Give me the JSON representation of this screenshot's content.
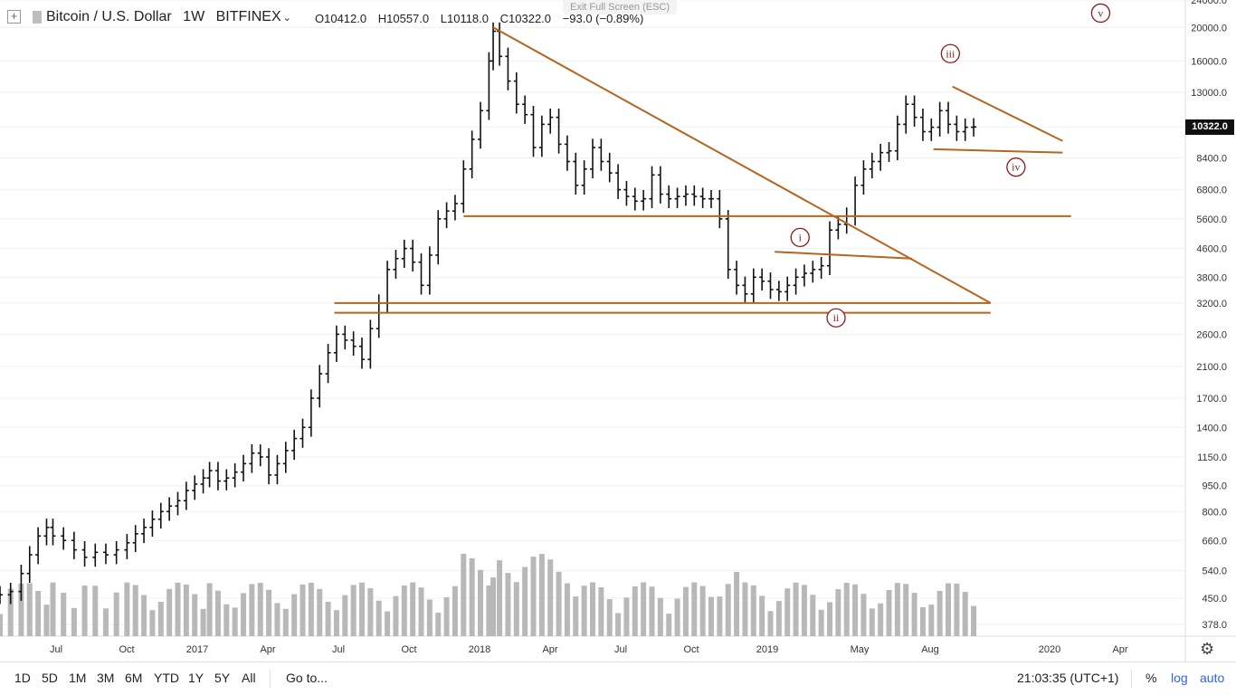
{
  "header": {
    "symbol": "Bitcoin / U.S. Dollar",
    "interval": "1W",
    "exchange": "BITFINEX",
    "open": "O10412.0",
    "high": "H10557.0",
    "low": "L10118.0",
    "close": "C10322.0",
    "change": "−93.0 (−0.89%)"
  },
  "exit_fullscreen": "Exit Full Screen (ESC)",
  "bottom_bar": {
    "ranges": [
      "1D",
      "5D",
      "1M",
      "3M",
      "6M",
      "YTD",
      "1Y",
      "5Y",
      "All"
    ],
    "goto": "Go to...",
    "clock": "21:03:35 (UTC+1)",
    "percent": "%",
    "log": "log",
    "auto": "auto"
  },
  "last_price_label": "10322.0",
  "chart_data": {
    "type": "candlestick",
    "title": "Bitcoin / U.S. Dollar",
    "scale": "log",
    "ylim": [
      360,
      24000
    ],
    "y_ticks": [
      "24000.0",
      "20000.0",
      "16000.0",
      "13000.0",
      "10322.0",
      "8400.0",
      "6800.0",
      "5600.0",
      "4600.0",
      "3800.0",
      "3200.0",
      "2600.0",
      "2100.0",
      "1700.0",
      "1400.0",
      "1150.0",
      "950.0",
      "800.0",
      "660.0",
      "540.0",
      "450.0",
      "378.0"
    ],
    "x_ticks": [
      "Jul",
      "Oct",
      "2017",
      "Apr",
      "Jul",
      "Oct",
      "2018",
      "Apr",
      "Jul",
      "Oct",
      "2019",
      "May",
      "Aug",
      "2020",
      "Apr"
    ],
    "price_series": [
      [
        0,
        460
      ],
      [
        5,
        470
      ],
      [
        10,
        530
      ],
      [
        14,
        600
      ],
      [
        18,
        680
      ],
      [
        22,
        720
      ],
      [
        25,
        680
      ],
      [
        30,
        660
      ],
      [
        35,
        620
      ],
      [
        40,
        590
      ],
      [
        45,
        610
      ],
      [
        50,
        600
      ],
      [
        55,
        620
      ],
      [
        60,
        650
      ],
      [
        64,
        690
      ],
      [
        68,
        720
      ],
      [
        72,
        760
      ],
      [
        76,
        800
      ],
      [
        80,
        830
      ],
      [
        84,
        860
      ],
      [
        88,
        920
      ],
      [
        92,
        960
      ],
      [
        96,
        1000
      ],
      [
        99,
        1050
      ],
      [
        103,
        980
      ],
      [
        107,
        1000
      ],
      [
        111,
        1040
      ],
      [
        115,
        1100
      ],
      [
        119,
        1180
      ],
      [
        123,
        1150
      ],
      [
        127,
        1020
      ],
      [
        131,
        1100
      ],
      [
        135,
        1200
      ],
      [
        139,
        1300
      ],
      [
        143,
        1400
      ],
      [
        147,
        1700
      ],
      [
        151,
        2000
      ],
      [
        155,
        2300
      ],
      [
        159,
        2600
      ],
      [
        163,
        2500
      ],
      [
        167,
        2400
      ],
      [
        171,
        2200
      ],
      [
        175,
        2700
      ],
      [
        179,
        3200
      ],
      [
        183,
        4000
      ],
      [
        187,
        4300
      ],
      [
        191,
        4600
      ],
      [
        195,
        4200
      ],
      [
        199,
        3600
      ],
      [
        203,
        4400
      ],
      [
        207,
        5600
      ],
      [
        211,
        5900
      ],
      [
        215,
        6200
      ],
      [
        219,
        7800
      ],
      [
        223,
        9500
      ],
      [
        227,
        11500
      ],
      [
        231,
        16000
      ],
      [
        233,
        19500
      ],
      [
        236,
        16500
      ],
      [
        240,
        14000
      ],
      [
        244,
        12000
      ],
      [
        248,
        11200
      ],
      [
        252,
        9000
      ],
      [
        256,
        10500
      ],
      [
        260,
        11000
      ],
      [
        264,
        9200
      ],
      [
        268,
        8200
      ],
      [
        272,
        7000
      ],
      [
        276,
        7800
      ],
      [
        280,
        9000
      ],
      [
        284,
        8200
      ],
      [
        288,
        7600
      ],
      [
        292,
        6800
      ],
      [
        296,
        6500
      ],
      [
        300,
        6300
      ],
      [
        304,
        6400
      ],
      [
        308,
        7500
      ],
      [
        312,
        6600
      ],
      [
        316,
        6400
      ],
      [
        320,
        6500
      ],
      [
        324,
        6600
      ],
      [
        328,
        6500
      ],
      [
        332,
        6400
      ],
      [
        336,
        6400
      ],
      [
        340,
        5600
      ],
      [
        344,
        4000
      ],
      [
        348,
        3600
      ],
      [
        352,
        3400
      ],
      [
        356,
        3800
      ],
      [
        360,
        3700
      ],
      [
        364,
        3500
      ],
      [
        368,
        3450
      ],
      [
        372,
        3600
      ],
      [
        376,
        3800
      ],
      [
        380,
        3900
      ],
      [
        384,
        4000
      ],
      [
        388,
        4100
      ],
      [
        392,
        5200
      ],
      [
        396,
        5400
      ],
      [
        400,
        5700
      ],
      [
        404,
        7000
      ],
      [
        408,
        7800
      ],
      [
        412,
        8200
      ],
      [
        416,
        8700
      ],
      [
        420,
        8800
      ],
      [
        424,
        10500
      ],
      [
        428,
        12000
      ],
      [
        432,
        11000
      ],
      [
        436,
        10000
      ],
      [
        440,
        10300
      ],
      [
        444,
        11500
      ],
      [
        448,
        10500
      ],
      [
        452,
        10000
      ],
      [
        456,
        10300
      ],
      [
        460,
        10322
      ]
    ],
    "trendlines": [
      {
        "from": [
          233,
          20000
        ],
        "to": [
          468,
          3200
        ]
      },
      {
        "from": [
          158,
          3200
        ],
        "to": [
          468,
          3200
        ]
      },
      {
        "from": [
          158,
          3000
        ],
        "to": [
          468,
          3000
        ]
      },
      {
        "from": [
          219,
          5700
        ],
        "to": [
          506,
          5700
        ]
      },
      {
        "from": [
          366,
          4500
        ],
        "to": [
          431,
          4300
        ]
      },
      {
        "from": [
          450,
          13500
        ],
        "to": [
          502,
          9400
        ]
      },
      {
        "from": [
          441,
          8900
        ],
        "to": [
          502,
          8700
        ]
      }
    ],
    "wave_labels": [
      {
        "label": "i",
        "at": [
          378,
          4950
        ]
      },
      {
        "label": "ii",
        "at": [
          395,
          2900
        ]
      },
      {
        "label": "iii",
        "at": [
          449,
          16800
        ]
      },
      {
        "label": "iv",
        "at": [
          480,
          7900
        ]
      },
      {
        "label": "v",
        "at": [
          520,
          22000
        ]
      }
    ],
    "volume_ymax": 100,
    "colors": {
      "bars": "#111111",
      "volume": "#b8b8b8",
      "trendline": "#b5651d",
      "wave": "#8b1a1a",
      "grid": "#f0f0f0"
    }
  }
}
